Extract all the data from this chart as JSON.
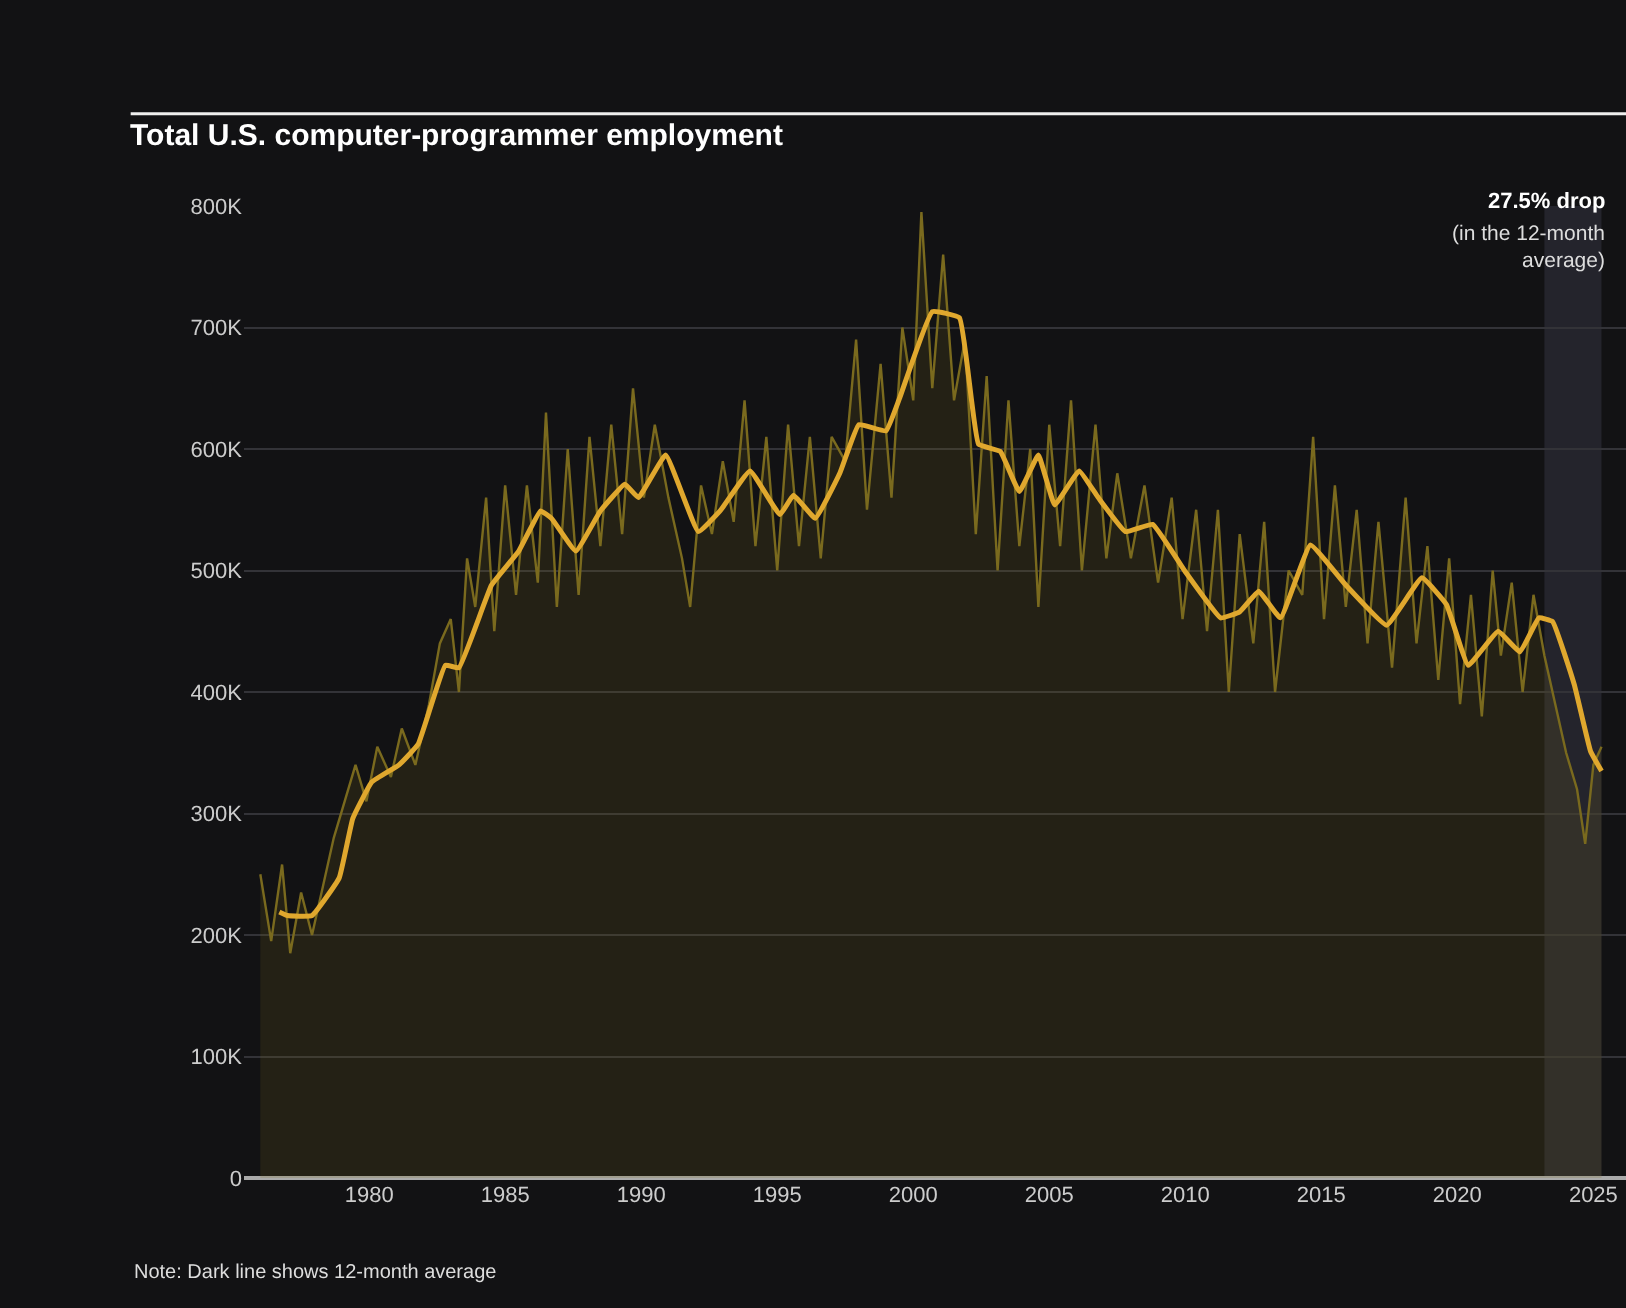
{
  "chart_data": {
    "type": "area",
    "title": "Total U.S. computer-programmer employment",
    "annotations": [
      "27.5% drop",
      "(in the 12-month average)",
      "Note: Dark line shows 12-month average"
    ],
    "series": [
      {
        "color": "#7a6a1e",
        "x": [
          1976.0,
          1976.4,
          1976.8,
          1977.1,
          1977.5,
          1977.9,
          1978.3,
          1978.7,
          1979.1,
          1979.5,
          1979.9,
          1980.3,
          1980.8,
          1981.2,
          1981.7,
          1982.2,
          1982.6,
          1983.0,
          1983.3,
          1983.6,
          1983.9,
          1984.3,
          1984.6,
          1985.0,
          1985.4,
          1985.8,
          1986.2,
          1986.5,
          1986.9,
          1987.3,
          1987.7,
          1988.1,
          1988.5,
          1988.9,
          1989.3,
          1989.7,
          1990.1,
          1990.5,
          1991.0,
          1991.5,
          1991.8,
          1992.2,
          1992.6,
          1993.0,
          1993.4,
          1993.8,
          1994.2,
          1994.6,
          1995.0,
          1995.4,
          1995.8,
          1996.2,
          1996.6,
          1997.0,
          1997.5,
          1997.9,
          1998.3,
          1998.8,
          1999.2,
          1999.6,
          2000.0,
          2000.3,
          2000.7,
          2001.1,
          2001.5,
          2001.9,
          2002.3,
          2002.7,
          2003.1,
          2003.5,
          2003.9,
          2004.3,
          2004.6,
          2005.0,
          2005.4,
          2005.8,
          2006.2,
          2006.7,
          2007.1,
          2007.5,
          2008.0,
          2008.5,
          2009.0,
          2009.5,
          2009.9,
          2010.4,
          2010.8,
          2011.2,
          2011.6,
          2012.0,
          2012.5,
          2012.9,
          2013.3,
          2013.8,
          2014.3,
          2014.7,
          2015.1,
          2015.5,
          2015.9,
          2016.3,
          2016.7,
          2017.1,
          2017.6,
          2018.1,
          2018.5,
          2018.9,
          2019.3,
          2019.7,
          2020.1,
          2020.5,
          2020.9,
          2021.3,
          2021.6,
          2022.0,
          2022.4,
          2022.8,
          2023.2,
          2023.6,
          2024.0,
          2024.4,
          2024.7,
          2025.0,
          2025.3
        ],
        "values": [
          250000,
          195000,
          258000,
          185000,
          235000,
          200000,
          240000,
          280000,
          310000,
          340000,
          310000,
          355000,
          330000,
          370000,
          340000,
          390000,
          440000,
          460000,
          400000,
          510000,
          470000,
          560000,
          450000,
          570000,
          480000,
          570000,
          490000,
          630000,
          470000,
          600000,
          480000,
          610000,
          520000,
          620000,
          530000,
          650000,
          560000,
          620000,
          560000,
          510000,
          470000,
          570000,
          530000,
          590000,
          540000,
          640000,
          520000,
          610000,
          500000,
          620000,
          520000,
          610000,
          510000,
          610000,
          590000,
          690000,
          550000,
          670000,
          560000,
          700000,
          640000,
          795000,
          650000,
          760000,
          640000,
          690000,
          530000,
          660000,
          500000,
          640000,
          520000,
          600000,
          470000,
          620000,
          520000,
          640000,
          500000,
          620000,
          510000,
          580000,
          510000,
          570000,
          490000,
          560000,
          460000,
          550000,
          450000,
          550000,
          400000,
          530000,
          440000,
          540000,
          400000,
          500000,
          480000,
          610000,
          460000,
          570000,
          470000,
          550000,
          440000,
          540000,
          420000,
          560000,
          440000,
          520000,
          410000,
          510000,
          390000,
          480000,
          380000,
          500000,
          430000,
          490000,
          400000,
          480000,
          430000,
          390000,
          350000,
          320000,
          275000,
          340000,
          355000
        ]
      },
      {
        "type": "line",
        "color": "#e0a82e",
        "x": [
          1976.7,
          1977.0,
          1977.9,
          1978.9,
          1979.4,
          1980.1,
          1981.1,
          1981.8,
          1982.8,
          1983.3,
          1984.5,
          1985.5,
          1986.3,
          1986.7,
          1987.6,
          1988.5,
          1989.4,
          1989.9,
          1990.9,
          1992.1,
          1992.9,
          1994.0,
          1995.1,
          1995.6,
          1996.4,
          1997.3,
          1998.0,
          1999.0,
          1999.5,
          2000.7,
          2001.7,
          2002.4,
          2003.2,
          2003.9,
          2004.6,
          2005.2,
          2006.1,
          2006.8,
          2007.8,
          2008.8,
          2010.0,
          2011.3,
          2012.0,
          2012.7,
          2013.5,
          2014.6,
          2015.9,
          2017.4,
          2018.7,
          2019.6,
          2020.4,
          2021.5,
          2022.3,
          2023.0,
          2023.5,
          2024.3,
          2024.9,
          2025.3
        ],
        "values": [
          219000,
          216000,
          216000,
          247000,
          296000,
          326000,
          340000,
          357000,
          422000,
          420000,
          488000,
          516000,
          549000,
          543000,
          516000,
          549000,
          571000,
          560000,
          595000,
          532000,
          549000,
          582000,
          546000,
          562000,
          543000,
          580000,
          620000,
          615000,
          642000,
          713000,
          708000,
          604000,
          598000,
          565000,
          595000,
          554000,
          582000,
          560000,
          532000,
          538000,
          499000,
          461000,
          466000,
          483000,
          461000,
          521000,
          488000,
          455000,
          494000,
          472000,
          422000,
          450000,
          433000,
          461000,
          458000,
          406000,
          351000,
          335000
        ]
      }
    ],
    "bands": [
      {
        "axis": "x",
        "from": 2023.2,
        "to": 2025.3,
        "color": "#24242c"
      }
    ],
    "xlim": [
      1975.4,
      2026.2
    ],
    "xticks": [
      1980,
      1985,
      1990,
      1995,
      2000,
      2005,
      2010,
      2015,
      2020,
      2025
    ],
    "ylim": [
      0,
      800000
    ],
    "yticks": [
      {
        "value": 0,
        "label": "0"
      },
      {
        "value": 100000,
        "label": "100K"
      },
      {
        "value": 200000,
        "label": "200K"
      },
      {
        "value": 300000,
        "label": "300K"
      },
      {
        "value": 400000,
        "label": "400K"
      },
      {
        "value": 500000,
        "label": "500K"
      },
      {
        "value": 600000,
        "label": "600K"
      },
      {
        "value": 700000,
        "label": "700K"
      },
      {
        "value": 800000,
        "label": "800K"
      }
    ],
    "grid": "y"
  }
}
